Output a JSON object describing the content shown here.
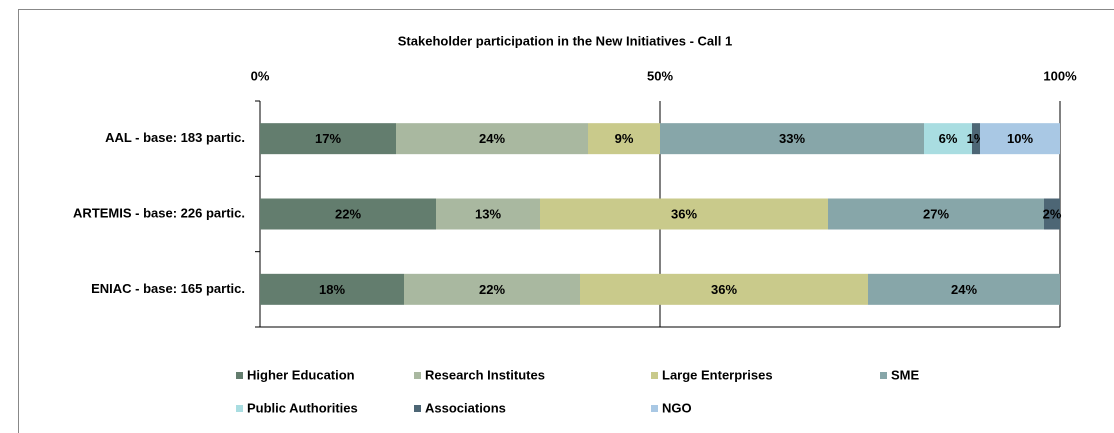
{
  "chart_data": {
    "type": "stacked-bar-horizontal",
    "title": "Stakeholder participation in the New Initiatives - Call 1",
    "categories": [
      "AAL - base: 183 partic.",
      "ARTEMIS - base: 226 partic.",
      "ENIAC - base: 165 partic."
    ],
    "xlim": [
      0,
      100
    ],
    "xticks": [
      {
        "value": 0,
        "label": "0%"
      },
      {
        "value": 50,
        "label": "50%"
      },
      {
        "value": 100,
        "label": "100%"
      }
    ],
    "series": [
      {
        "name": "Higher Education",
        "color": "#637d6e",
        "values": [
          17,
          22,
          18
        ],
        "value_labels": [
          "17%",
          "22%",
          "18%"
        ]
      },
      {
        "name": "Research Institutes",
        "color": "#a9b8a0",
        "values": [
          24,
          13,
          22
        ],
        "value_labels": [
          "24%",
          "13%",
          "22%"
        ]
      },
      {
        "name": "Large Enterprises",
        "color": "#c9ca8b",
        "values": [
          9,
          36,
          36
        ],
        "value_labels": [
          "9%",
          "36%",
          "36%"
        ]
      },
      {
        "name": "SME",
        "color": "#87a6a9",
        "values": [
          33,
          27,
          24
        ],
        "value_labels": [
          "33%",
          "27%",
          "24%"
        ]
      },
      {
        "name": "Public Authorities",
        "color": "#a9dde1",
        "values": [
          6,
          null,
          null
        ],
        "value_labels": [
          "6%",
          null,
          null
        ]
      },
      {
        "name": "Associations",
        "color": "#4d6675",
        "values": [
          1,
          2,
          null
        ],
        "value_labels": [
          "1%",
          "2%",
          null
        ]
      },
      {
        "name": "NGO",
        "color": "#a9c8e4",
        "values": [
          10,
          null,
          null
        ],
        "value_labels": [
          "10%",
          null,
          null
        ]
      }
    ]
  }
}
